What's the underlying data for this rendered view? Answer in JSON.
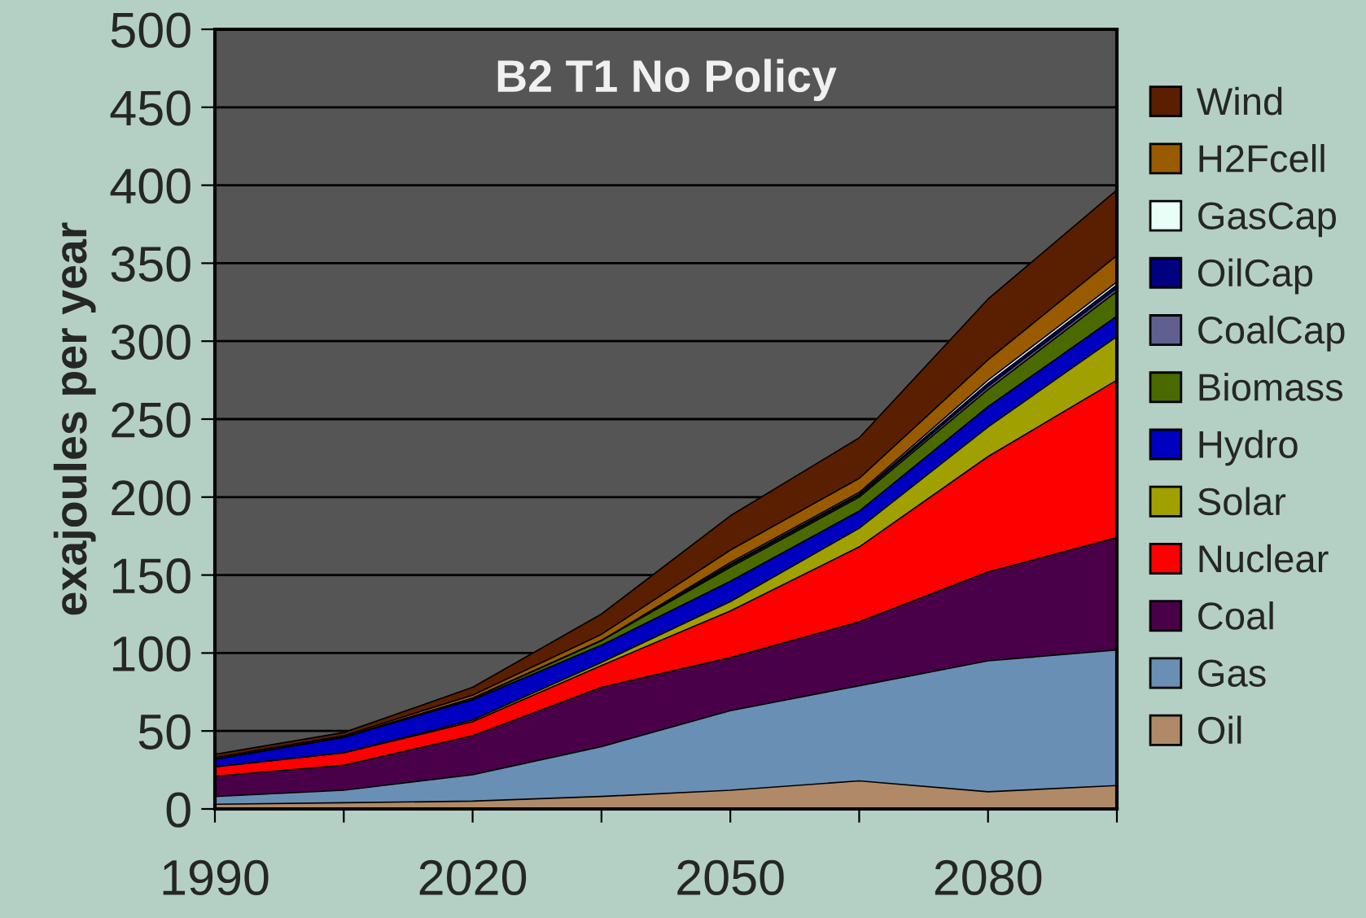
{
  "chart_data": {
    "type": "area",
    "stacked": true,
    "title": "B2 T1 No Policy",
    "ylabel": "exajoules per year",
    "x": [
      1990,
      2005,
      2020,
      2035,
      2050,
      2065,
      2080,
      2095
    ],
    "xlim": [
      1990,
      2095
    ],
    "xticks": [
      1990,
      {
        "value": 2005,
        "label": null
      },
      2020,
      {
        "value": 2035,
        "label": null
      },
      2050,
      {
        "value": 2065,
        "label": null
      },
      2080,
      {
        "value": 2095,
        "label": null
      }
    ],
    "ylim": [
      0,
      500
    ],
    "yticks": [
      0,
      50,
      100,
      150,
      200,
      250,
      300,
      350,
      400,
      450,
      500
    ],
    "grid": "y",
    "legend": "right",
    "series": [
      {
        "name": "Oil",
        "color": "#b08a68",
        "values": [
          3,
          4,
          5,
          8,
          12,
          18,
          11,
          15
        ]
      },
      {
        "name": "Gas",
        "color": "#6a8fb5",
        "values": [
          5,
          8,
          17,
          32,
          51,
          61,
          84,
          87
        ]
      },
      {
        "name": "Coal",
        "color": "#4a0048",
        "values": [
          13,
          16,
          25,
          38,
          34,
          41,
          57,
          72
        ]
      },
      {
        "name": "Nuclear",
        "color": "#ff0000",
        "values": [
          6,
          8,
          9,
          14,
          30,
          48,
          74,
          101
        ]
      },
      {
        "name": "Solar",
        "color": "#a0a000",
        "values": [
          0,
          0,
          1,
          2,
          6,
          12,
          19,
          28
        ]
      },
      {
        "name": "Hydro",
        "color": "#0000c0",
        "values": [
          5,
          10,
          13,
          11,
          13,
          11,
          13,
          13
        ]
      },
      {
        "name": "Biomass",
        "color": "#4a6a00",
        "values": [
          0,
          0,
          1,
          3,
          9,
          9,
          11,
          16
        ]
      },
      {
        "name": "CoalCap",
        "color": "#606090",
        "values": [
          0,
          0,
          0,
          0,
          1,
          1,
          2,
          2
        ]
      },
      {
        "name": "OilCap",
        "color": "#000080",
        "values": [
          0,
          0,
          0,
          0,
          1,
          1,
          2,
          2
        ]
      },
      {
        "name": "GasCap",
        "color": "#e8fff8",
        "values": [
          0,
          0,
          0,
          0,
          1,
          1,
          2,
          2
        ]
      },
      {
        "name": "H2Fcell",
        "color": "#9a5a00",
        "values": [
          1,
          1,
          2,
          4,
          8,
          9,
          13,
          17
        ]
      },
      {
        "name": "Wind",
        "color": "#5a1e00",
        "values": [
          2,
          2,
          5,
          13,
          22,
          26,
          39,
          42
        ]
      }
    ]
  }
}
